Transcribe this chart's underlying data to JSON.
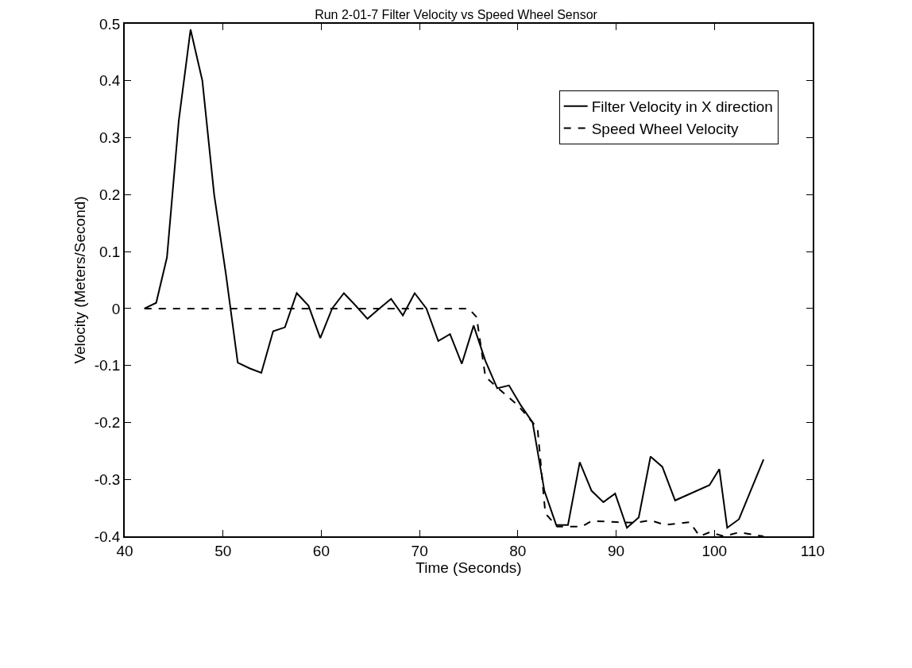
{
  "chart_data": {
    "type": "line",
    "title": "Run 2-01-7 Filter Velocity vs Speed Wheel Sensor",
    "xlabel": "Time (Seconds)",
    "ylabel": "Velocity (Meters/Second)",
    "xlim": [
      40,
      110
    ],
    "xticks": [
      40,
      50,
      60,
      70,
      80,
      90,
      100,
      110
    ],
    "ylim": [
      -0.4,
      0.5
    ],
    "yticks": [
      -0.4,
      -0.3,
      -0.2,
      -0.1,
      0,
      0.1,
      0.2,
      0.3,
      0.4,
      0.5
    ],
    "grid": false,
    "legend": "top right",
    "marker": "none",
    "series": [
      {
        "name": "Filter Velocity in X direction",
        "color": "#000000",
        "line_style": "solid",
        "x": [
          42,
          43.2,
          44.3,
          45.5,
          46.7,
          47.9,
          49.1,
          50.3,
          51.5,
          52.7,
          53.9,
          55.1,
          56.3,
          57.5,
          58.7,
          59.9,
          61.1,
          62.3,
          63.5,
          64.7,
          65.9,
          67.1,
          68.3,
          69.5,
          70.7,
          71.9,
          73.1,
          74.3,
          75.5,
          76.7,
          77.9,
          79.1,
          80.3,
          81.5,
          82.7,
          83.9,
          85.1,
          86.3,
          87.5,
          88.7,
          89.9,
          91.1,
          92.3,
          93.5,
          94.7,
          96,
          99.5,
          100.5,
          101.3,
          102.5,
          105
        ],
        "values": [
          0,
          0.01,
          0.09,
          0.33,
          0.49,
          0.4,
          0.2,
          0.06,
          -0.095,
          -0.105,
          -0.113,
          -0.04,
          -0.033,
          0.027,
          0.005,
          -0.052,
          0,
          0.027,
          0.005,
          -0.018,
          0,
          0.017,
          -0.012,
          0.027,
          0,
          -0.057,
          -0.045,
          -0.097,
          -0.03,
          -0.092,
          -0.14,
          -0.135,
          -0.17,
          -0.2,
          -0.32,
          -0.38,
          -0.38,
          -0.27,
          -0.32,
          -0.34,
          -0.325,
          -0.385,
          -0.367,
          -0.26,
          -0.278,
          -0.337,
          -0.31,
          -0.282,
          -0.385,
          -0.37,
          -0.265
        ]
      },
      {
        "name": "Speed Wheel Velocity",
        "color": "#000000",
        "line_style": "dashed",
        "x": [
          42,
          75,
          75.8,
          76.7,
          78,
          80,
          82,
          82.8,
          84,
          86.5,
          87.5,
          90,
          92,
          93.5,
          95,
          97.5,
          98.5,
          99.5,
          101,
          102.5,
          105
        ],
        "values": [
          0,
          0,
          -0.015,
          -0.12,
          -0.14,
          -0.17,
          -0.21,
          -0.36,
          -0.383,
          -0.383,
          -0.373,
          -0.375,
          -0.376,
          -0.372,
          -0.38,
          -0.375,
          -0.4,
          -0.393,
          -0.4,
          -0.393,
          -0.4
        ]
      }
    ]
  }
}
